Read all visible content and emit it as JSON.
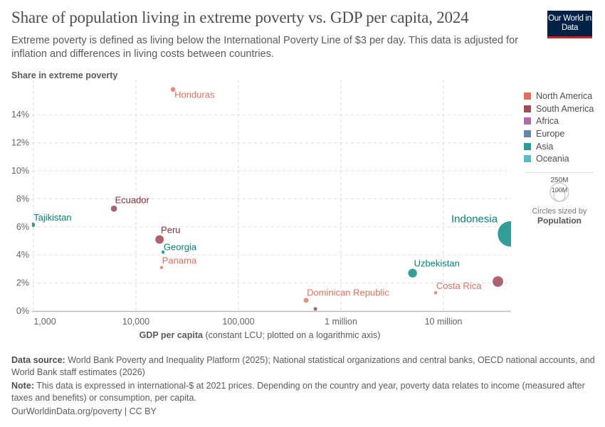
{
  "header": {
    "title": "Share of population living in extreme poverty vs. GDP per capita, 2024",
    "subtitle": "Extreme poverty is defined as living below the International Poverty Line of $3 per day. This data is adjusted for inflation and differences in living costs between countries.",
    "logo_text": "Our World in Data"
  },
  "legend": {
    "items": [
      {
        "label": "North America",
        "color": "#e56e5a"
      },
      {
        "label": "South America",
        "color": "#9a5057"
      },
      {
        "label": "Africa",
        "color": "#b16aa8"
      },
      {
        "label": "Europe",
        "color": "#6a82ad"
      },
      {
        "label": "Asia",
        "color": "#2a9d92"
      },
      {
        "label": "Oceania",
        "color": "#5bbac6"
      }
    ],
    "size_legend": {
      "large": "250M",
      "small": "100M",
      "caption": "Circles sized by",
      "variable": "Population"
    }
  },
  "chart_data": {
    "type": "scatter",
    "title": "Share of population living in extreme poverty vs. GDP per capita, 2024",
    "xlabel_bold": "GDP per capita",
    "xlabel_rest": "(constant LCU; plotted on a logarithmic axis)",
    "ylabel": "Share in extreme poverty",
    "x_scale": "log",
    "xlim": [
      900,
      45000000
    ],
    "ylim": [
      0,
      16
    ],
    "grid": true,
    "legend_position": "right",
    "x_ticks": [
      {
        "value": 1000,
        "label": "1,000"
      },
      {
        "value": 10000,
        "label": "10,000"
      },
      {
        "value": 100000,
        "label": "100,000"
      },
      {
        "value": 1000000,
        "label": "1 million"
      },
      {
        "value": 10000000,
        "label": "10 million"
      }
    ],
    "y_ticks": [
      {
        "value": 0,
        "label": "0%"
      },
      {
        "value": 2,
        "label": "2%"
      },
      {
        "value": 4,
        "label": "4%"
      },
      {
        "value": 6,
        "label": "6%"
      },
      {
        "value": 8,
        "label": "8%"
      },
      {
        "value": 10,
        "label": "10%"
      },
      {
        "value": 12,
        "label": "12%"
      },
      {
        "value": 14,
        "label": "14%"
      }
    ],
    "points": [
      {
        "label": "Honduras",
        "region": "North America",
        "x": 23000,
        "y": 15.8,
        "population": 10.8
      },
      {
        "label": "Ecuador",
        "region": "South America",
        "x": 6100,
        "y": 7.3,
        "population": 18
      },
      {
        "label": "Tajikistan",
        "region": "Asia",
        "x": 985,
        "y": 6.15,
        "population": 10.5
      },
      {
        "label": "Peru",
        "region": "South America",
        "x": 17000,
        "y": 5.1,
        "population": 34
      },
      {
        "label": "Georgia",
        "region": "Asia",
        "x": 18400,
        "y": 4.2,
        "population": 3.7
      },
      {
        "label": "Panama",
        "region": "North America",
        "x": 17800,
        "y": 3.1,
        "population": 4.5
      },
      {
        "label": "Dominican Republic",
        "region": "North America",
        "x": 457000,
        "y": 0.76,
        "population": 11.4
      },
      {
        "label": "",
        "region": "South America",
        "x": 563000,
        "y": 0.15,
        "population": 6.9
      },
      {
        "label": "Uzbekistan",
        "region": "Asia",
        "x": 5000000,
        "y": 2.7,
        "population": 36
      },
      {
        "label": "Costa Rica",
        "region": "North America",
        "x": 8400000,
        "y": 1.3,
        "population": 5.1
      },
      {
        "label": "",
        "region": "South America",
        "x": 34000000,
        "y": 2.1,
        "population": 52
      },
      {
        "label": "Indonesia",
        "region": "Asia",
        "x": 45000000,
        "y": 5.5,
        "population": 283
      }
    ]
  },
  "footer": {
    "source_label": "Data source:",
    "source_text": "World Bank Poverty and Inequality Platform (2025); National statistical organizations and central banks, OECD national accounts, and World Bank staff estimates (2026)",
    "note_label": "Note:",
    "note_text": "This data is expressed in international-$ at 2021 prices. Depending on the country and year, poverty data relates to income (measured after taxes and benefits) or consumption, per capita.",
    "url": "OurWorldinData.org/poverty | CC BY"
  }
}
